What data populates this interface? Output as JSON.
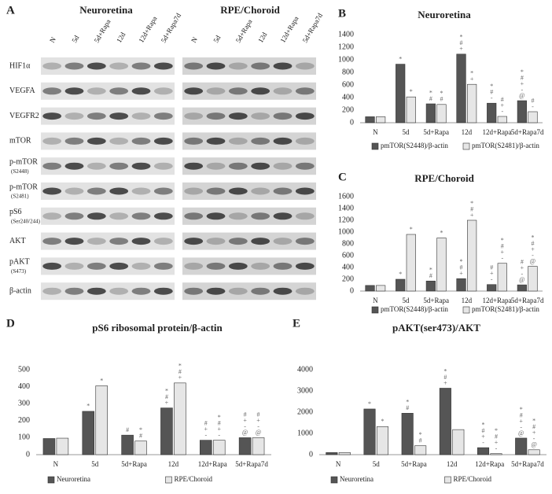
{
  "panel_labels": [
    "A",
    "B",
    "C",
    "D",
    "E"
  ],
  "blot": {
    "titles": [
      "Neuroretina",
      "RPE/Choroid"
    ],
    "lanes": [
      "N",
      "5d",
      "5d+Rapa",
      "12d",
      "12d+Rapa",
      "5d+Rapa7d"
    ],
    "rows": [
      {
        "label": "HIF1α"
      },
      {
        "label": "VEGFA"
      },
      {
        "label": "VEGFR2"
      },
      {
        "label": "mTOR"
      },
      {
        "label": "p-mTOR",
        "sub": "(S2448)"
      },
      {
        "label": "p-mTOR",
        "sub": "(S2481)"
      },
      {
        "label": "pS6",
        "sub": "(Ser240/244)"
      },
      {
        "label": "AKT"
      },
      {
        "label": "pAKT",
        "sub": "(S473)"
      },
      {
        "label": "β-actin"
      }
    ]
  },
  "chart_data": [
    {
      "type": "bar",
      "title": "Neuroretina",
      "categories": [
        "N",
        "5d",
        "5d+Rapa",
        "12d",
        "12d+Rapa",
        "5d+Rapa7d"
      ],
      "series": [
        {
          "name": "pmTOR(S2448)/β-actin",
          "color": "#555555",
          "values": [
            95,
            930,
            300,
            1090,
            310,
            350
          ],
          "markers": [
            null,
            [
              "*"
            ],
            [
              "*",
              "#"
            ],
            [
              "*",
              "#",
              "+"
            ],
            [
              "*",
              "#",
              "-"
            ],
            [
              "*",
              "#",
              "+",
              "-",
              "@"
            ]
          ]
        },
        {
          "name": "pmTOR(S2481)/β-actin",
          "color": "#e6e6e6",
          "values": [
            95,
            410,
            290,
            610,
            100,
            175
          ],
          "markers": [
            null,
            [
              "*"
            ],
            [
              "*",
              "#"
            ],
            [
              "*",
              "+"
            ],
            [
              "#",
              "+",
              "-"
            ],
            [
              "#",
              "-"
            ]
          ]
        }
      ],
      "ylim": [
        0,
        1400
      ],
      "yticks": [
        0,
        200,
        400,
        600,
        800,
        1000,
        1200,
        1400
      ]
    },
    {
      "type": "bar",
      "title": "RPE/Choroid",
      "categories": [
        "N",
        "5d",
        "5d+Rapa",
        "12d",
        "12d+Rapa",
        "5d+Rapa7d"
      ],
      "series": [
        {
          "name": "pmTOR(S2448)/β-actin",
          "color": "#555555",
          "values": [
            95,
            200,
            170,
            210,
            110,
            105
          ],
          "markers": [
            null,
            [
              "*"
            ],
            [
              "*",
              "#"
            ],
            [
              "*",
              "#",
              "+"
            ],
            [
              "#",
              "+",
              "-"
            ],
            [
              "#",
              "+",
              "-",
              "@"
            ]
          ]
        },
        {
          "name": "pmTOR(S2481)/β-actin",
          "color": "#e6e6e6",
          "values": [
            95,
            960,
            900,
            1200,
            470,
            420
          ],
          "markers": [
            null,
            [
              "*"
            ],
            [
              "*"
            ],
            [
              "*",
              "#",
              "+"
            ],
            [
              "*",
              "#",
              "+",
              "-"
            ],
            [
              "*",
              "#",
              "+",
              "-",
              "@"
            ]
          ]
        }
      ],
      "ylim": [
        0,
        1600
      ],
      "yticks": [
        0,
        200,
        400,
        600,
        800,
        1000,
        1200,
        1400,
        1600
      ]
    },
    {
      "type": "bar",
      "title": "pS6 ribosomal protein/β-actin",
      "categories": [
        "N",
        "5d",
        "5d+Rapa",
        "12d",
        "12d+Rapa",
        "5d+Rapa7d"
      ],
      "series": [
        {
          "name": "Neuroretina",
          "color": "#555555",
          "values": [
            95,
            255,
            115,
            275,
            85,
            100
          ],
          "markers": [
            null,
            [
              "*"
            ],
            [
              "#"
            ],
            [
              "*",
              "#",
              "+"
            ],
            [
              "#",
              "+",
              "-"
            ],
            [
              "#",
              "+",
              "-",
              "@"
            ]
          ]
        },
        {
          "name": "RPE/Choroid",
          "color": "#e6e6e6",
          "values": [
            97,
            405,
            80,
            422,
            85,
            100
          ],
          "markers": [
            null,
            [
              "*"
            ],
            [
              "*",
              "#"
            ],
            [
              "*",
              "#",
              "+"
            ],
            [
              "*",
              "#",
              "+",
              "-"
            ],
            [
              "#",
              "+",
              "-",
              "@"
            ]
          ]
        }
      ],
      "ylim": [
        0,
        500
      ],
      "yticks": [
        0,
        100,
        200,
        300,
        400,
        500
      ]
    },
    {
      "type": "bar",
      "title": "pAKT(ser473)/AKT",
      "categories": [
        "N",
        "5d",
        "5d+Rapa",
        "12d",
        "12d+Rapa",
        "5d+Rapa7d"
      ],
      "series": [
        {
          "name": "Neuroretina",
          "color": "#555555",
          "values": [
            100,
            2150,
            1950,
            3130,
            330,
            780
          ],
          "markers": [
            null,
            [
              "*"
            ],
            [
              "*",
              "#"
            ],
            [
              "*",
              "#",
              "+"
            ],
            [
              "*",
              "#",
              "+",
              "-"
            ],
            [
              "*",
              "#",
              "+",
              "-",
              "@"
            ]
          ]
        },
        {
          "name": "RPE/Choroid",
          "color": "#e6e6e6",
          "values": [
            100,
            1320,
            420,
            1180,
            50,
            230
          ],
          "markers": [
            null,
            [
              "*"
            ],
            [
              "*",
              "#"
            ],
            null,
            [
              "*",
              "#",
              "+",
              "-"
            ],
            [
              "*",
              "#",
              "+",
              "-",
              "@"
            ]
          ]
        }
      ],
      "ylim": [
        0,
        4000
      ],
      "yticks": [
        0,
        1000,
        2000,
        3000,
        4000
      ]
    }
  ]
}
